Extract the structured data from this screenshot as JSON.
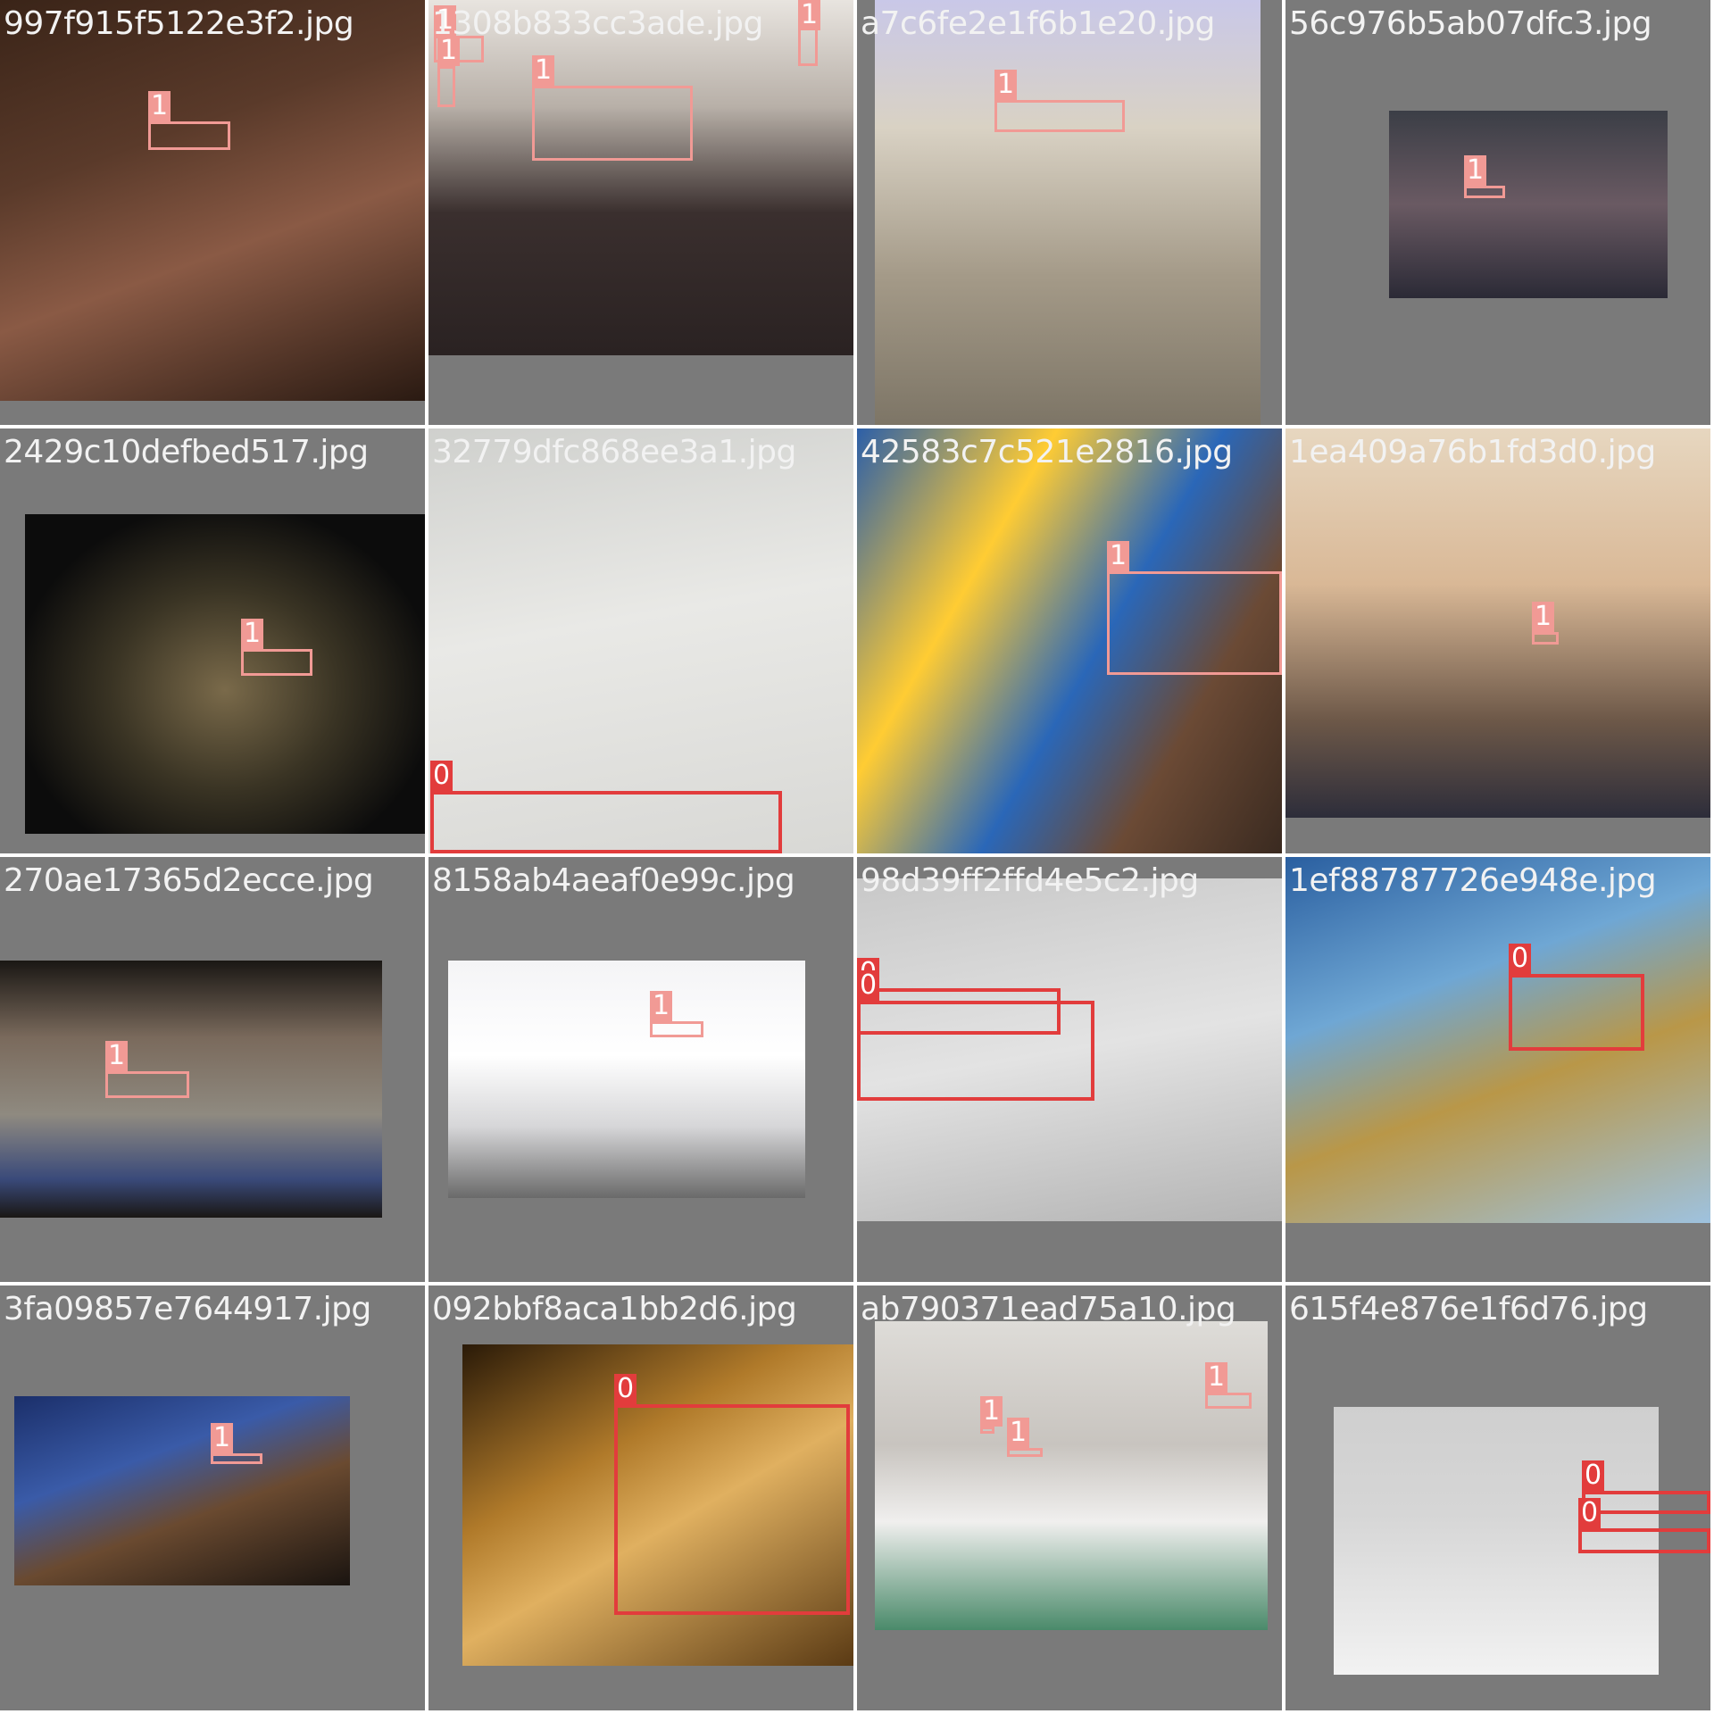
{
  "colors": {
    "tile_background": "#7a7a7a",
    "class_1_box": "#f19a95",
    "class_0_box": "#e23c3c",
    "filename_text": "#f2f2f2"
  },
  "tiles": [
    {
      "filename": "997f915f5122e3f2.jpg",
      "labels": [
        "1"
      ]
    },
    {
      "filename": "1308b833cc3ade.jpg",
      "labels": [
        "1",
        "1",
        "1",
        "1"
      ]
    },
    {
      "filename": "a7c6fe2e1f6b1e20.jpg",
      "labels": [
        "1"
      ]
    },
    {
      "filename": "56c976b5ab07dfc3.jpg",
      "labels": [
        "1"
      ]
    },
    {
      "filename": "2429c10defbed517.jpg",
      "labels": [
        "1"
      ]
    },
    {
      "filename": "32779dfc868ee3a1.jpg",
      "labels": [
        "0"
      ]
    },
    {
      "filename": "42583c7c521e2816.jpg",
      "labels": [
        "1"
      ]
    },
    {
      "filename": "1ea409a76b1fd3d0.jpg",
      "labels": [
        "1"
      ]
    },
    {
      "filename": "270ae17365d2ecce.jpg",
      "labels": [
        "1"
      ]
    },
    {
      "filename": "8158ab4aeaf0e99c.jpg",
      "labels": [
        "1"
      ]
    },
    {
      "filename": "98d39ff2ffd4e5c2.jpg",
      "labels": [
        "0",
        "0"
      ]
    },
    {
      "filename": "1ef88787726e948e.jpg",
      "labels": [
        "0"
      ]
    },
    {
      "filename": "3fa09857e7644917.jpg",
      "labels": [
        "1"
      ]
    },
    {
      "filename": "092bbf8aca1bb2d6.jpg",
      "labels": [
        "0"
      ]
    },
    {
      "filename": "ab790371ead75a10.jpg",
      "labels": [
        "1",
        "1",
        "1"
      ]
    },
    {
      "filename": "615f4e876e1f6d76.jpg",
      "labels": [
        "0",
        "0"
      ]
    }
  ]
}
